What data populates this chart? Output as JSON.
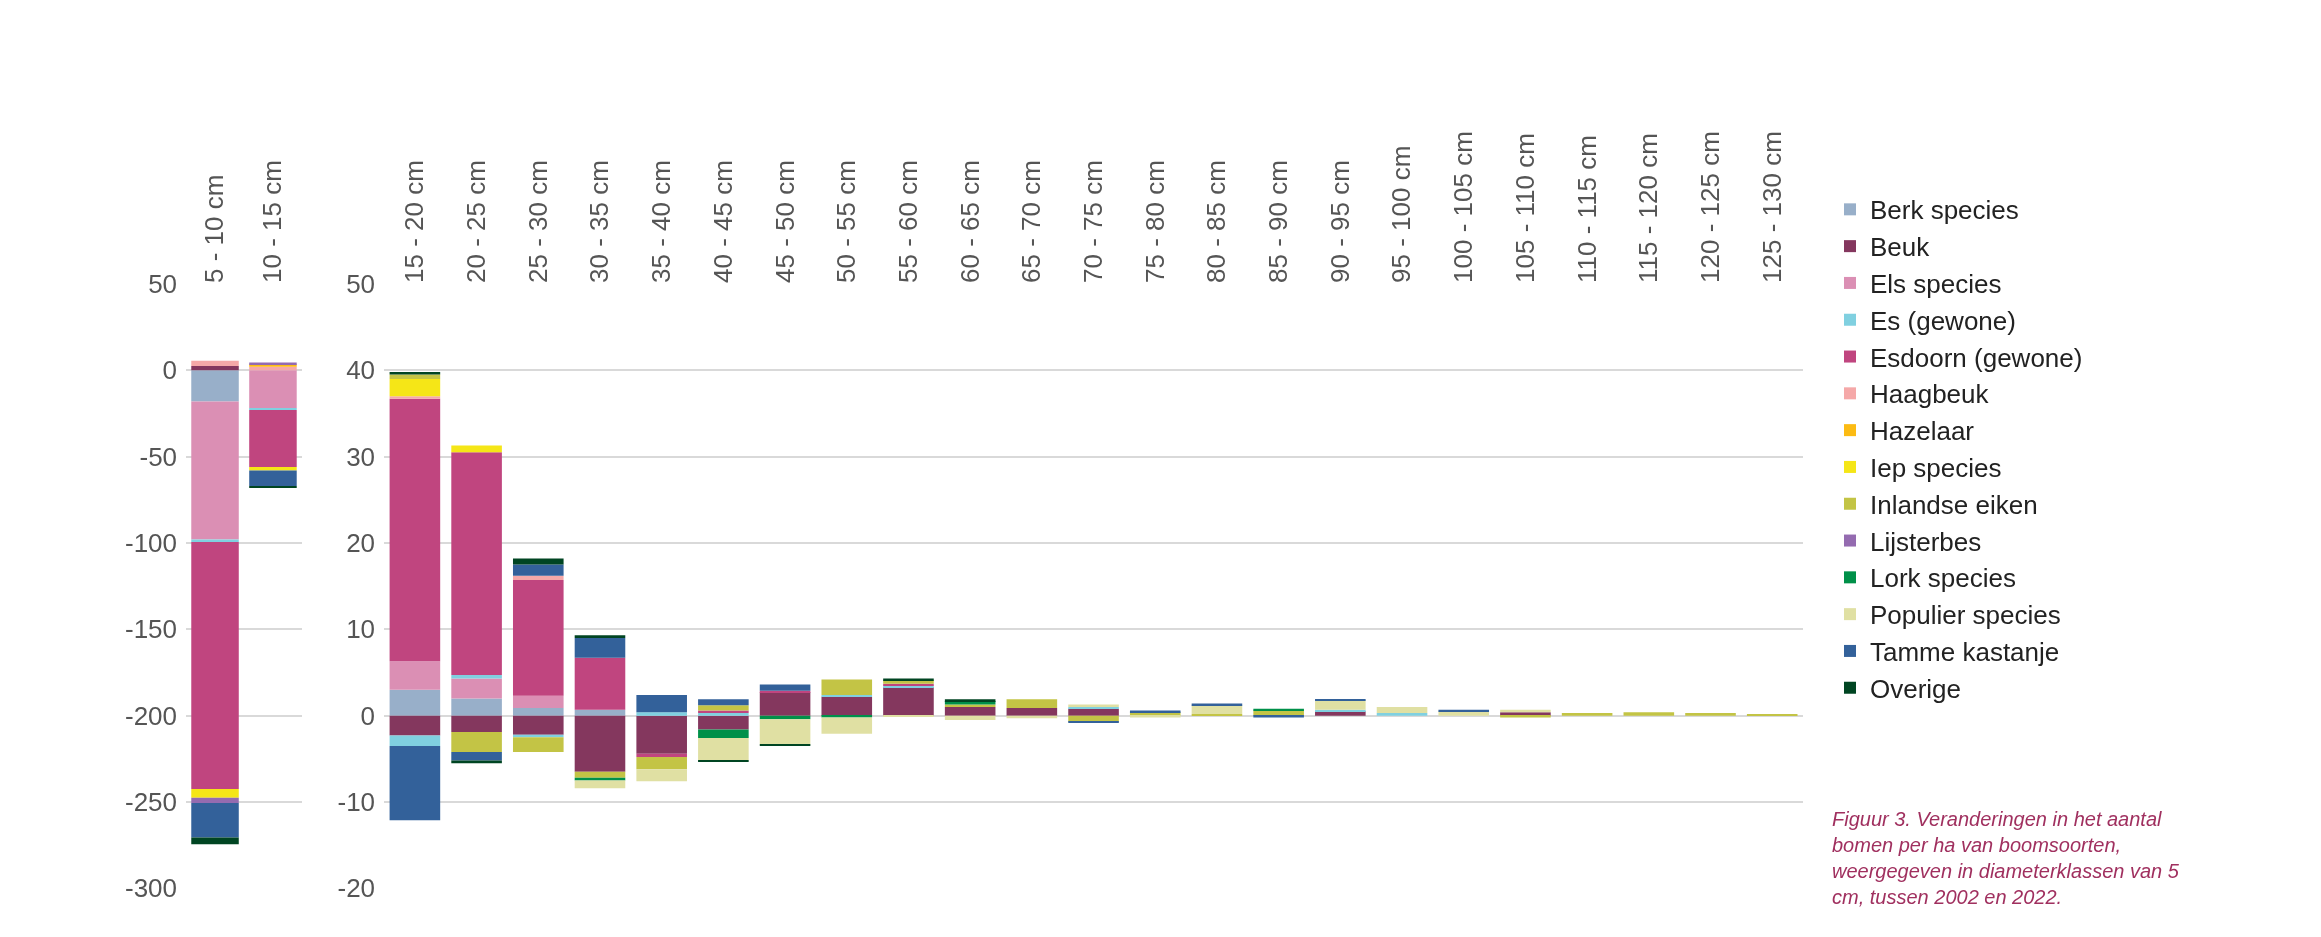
{
  "chart_data": [
    {
      "type": "bar",
      "stacked": true,
      "grid": "y",
      "legend": "right",
      "categories": [
        "5 - 10 cm",
        "10 - 15 cm"
      ],
      "ylim": [
        -300,
        50
      ],
      "yticks": [
        -300,
        -250,
        -200,
        -150,
        -100,
        -50,
        0,
        50
      ],
      "series": [
        {
          "name": "Berk species",
          "color": "#98afc9",
          "values": [
            -18,
            null
          ]
        },
        {
          "name": "Beuk",
          "color": "#84375e",
          "values": [
            2.5,
            null
          ]
        },
        {
          "name": "Els species",
          "color": "#db8fb4",
          "values": [
            -80,
            -22
          ]
        },
        {
          "name": "Es (gewone)",
          "color": "#80d0e0",
          "values": [
            -1.5,
            -1
          ]
        },
        {
          "name": "Esdoorn (gewone)",
          "color": "#c0457f",
          "values": [
            -143,
            -33
          ]
        },
        {
          "name": "Haagbeuk",
          "color": "#f5a8a8",
          "values": [
            3,
            2
          ]
        },
        {
          "name": "Hazelaar",
          "color": "#fcbb13",
          "values": [
            null,
            1.5
          ]
        },
        {
          "name": "Iep species",
          "color": "#f5e617",
          "values": [
            -5,
            -2
          ]
        },
        {
          "name": "Inlandse eiken",
          "color": "#c3c445",
          "values": [
            null,
            null
          ]
        },
        {
          "name": "Lijsterbes",
          "color": "#946bb0",
          "values": [
            -3,
            1
          ]
        },
        {
          "name": "Lork species",
          "color": "#009049",
          "values": [
            null,
            null
          ]
        },
        {
          "name": "Populier species",
          "color": "#e0e0a3",
          "values": [
            null,
            null
          ]
        },
        {
          "name": "Tamme kastanje",
          "color": "#33619a",
          "values": [
            -20,
            -9
          ]
        },
        {
          "name": "Overige",
          "color": "#004522",
          "values": [
            -4,
            -1
          ]
        }
      ]
    },
    {
      "type": "bar",
      "stacked": true,
      "grid": "y",
      "categories": [
        "15 - 20 cm",
        "20 - 25 cm",
        "25 - 30 cm",
        "30 - 35 cm",
        "35 - 40 cm",
        "40 - 45 cm",
        "45 - 50 cm",
        "50 - 55 cm",
        "55 - 60 cm",
        "60 - 65 cm",
        "65 - 70 cm",
        "70 - 75 cm",
        "75 - 80 cm",
        "80 - 85 cm",
        "85 - 90 cm",
        "90 - 95 cm",
        "95 - 100 cm",
        "100 - 105 cm",
        "105 - 110 cm",
        "110 - 115 cm",
        "115 - 120 cm",
        "120 - 125 cm",
        "125 - 130 cm"
      ],
      "ylim": [
        -20,
        50
      ],
      "yticks": [
        -20,
        -10,
        0,
        10,
        20,
        30,
        40,
        50
      ],
      "series": [
        {
          "color": "#98afc9",
          "values": [
            3.0,
            2.0,
            0.9,
            0.7,
            null,
            null,
            null,
            null,
            null,
            null,
            null,
            null,
            null,
            null,
            null,
            null,
            null,
            null,
            null,
            null,
            null,
            null,
            null
          ]
        },
        {
          "color": "#84375e",
          "values": [
            -2.3,
            -1.9,
            -2.2,
            -6.5,
            -4.4,
            -1.6,
            2.7,
            2.2,
            3.3,
            1.0,
            0.9,
            0.8,
            null,
            null,
            null,
            0.5,
            null,
            null,
            0.4,
            null,
            null,
            null,
            null
          ]
        },
        {
          "color": "#db8fb4",
          "values": [
            3.3,
            2.3,
            1.4,
            null,
            null,
            null,
            null,
            null,
            null,
            null,
            null,
            null,
            null,
            null,
            null,
            null,
            null,
            null,
            null,
            null,
            null,
            null,
            null
          ]
        },
        {
          "color": "#80d0e0",
          "values": [
            -1.2,
            0.4,
            -0.3,
            null,
            0.4,
            0.3,
            null,
            0.2,
            0.2,
            null,
            null,
            0.2,
            null,
            null,
            null,
            0.2,
            0.3,
            null,
            null,
            null,
            null,
            null,
            null
          ]
        },
        {
          "color": "#c0457f",
          "values": [
            30.4,
            25.8,
            13.4,
            6.0,
            -0.4,
            0.3,
            0.2,
            null,
            0.2,
            null,
            null,
            null,
            null,
            null,
            null,
            null,
            null,
            null,
            null,
            null,
            null,
            null,
            null
          ]
        },
        {
          "color": "#f5a8a8",
          "values": [
            0.3,
            null,
            0.5,
            null,
            null,
            null,
            null,
            null,
            null,
            null,
            null,
            null,
            null,
            null,
            null,
            null,
            null,
            null,
            null,
            null,
            null,
            null,
            null
          ]
        },
        {
          "color": "#f5e617",
          "values": [
            2.0,
            0.8,
            null,
            null,
            null,
            null,
            null,
            null,
            null,
            null,
            null,
            null,
            null,
            null,
            null,
            null,
            null,
            null,
            null,
            null,
            null,
            null,
            null
          ]
        },
        {
          "color": "#c3c445",
          "values": [
            0.5,
            -2.3,
            -1.7,
            -0.7,
            -1.4,
            0.6,
            null,
            1.8,
            0.4,
            0.3,
            1.0,
            -0.7,
            0.4,
            0.2,
            0.6,
            null,
            null,
            null,
            -0.2,
            0.3,
            0.4,
            0.3,
            0.1
          ]
        },
        {
          "color": "#009049",
          "values": [
            null,
            null,
            null,
            -0.3,
            null,
            -1.0,
            -0.4,
            -0.2,
            null,
            0.4,
            null,
            null,
            null,
            null,
            0.2,
            null,
            null,
            null,
            null,
            null,
            null,
            null,
            null
          ]
        },
        {
          "color": "#e0e0a3",
          "values": [
            null,
            null,
            null,
            -0.9,
            -1.4,
            -2.6,
            -2.9,
            -1.9,
            -0.1,
            -0.5,
            -0.3,
            0.3,
            -0.2,
            1.0,
            null,
            1.1,
            0.7,
            0.5,
            0.3,
            null,
            null,
            null,
            null
          ]
        },
        {
          "color": "#33619a",
          "values": [
            -8.6,
            -1.0,
            1.3,
            2.3,
            2.0,
            0.7,
            0.7,
            null,
            null,
            null,
            null,
            -0.1,
            0.2,
            0.2,
            -0.2,
            0.1,
            null,
            0.2,
            null,
            null,
            null,
            null,
            null
          ]
        },
        {
          "color": "#004522",
          "values": [
            0.3,
            -0.3,
            0.7,
            0.3,
            null,
            -0.1,
            -0.2,
            null,
            0.2,
            0.2,
            null,
            null,
            null,
            null,
            null,
            null,
            null,
            null,
            null,
            null,
            null,
            null,
            null
          ]
        }
      ],
      "annotations": [
        "Figuur 3. Veranderingen in het aantal bomen per ha van boomsoorten, weergegeven in diameterklassen van 5 cm, tussen 2002 en 2022."
      ]
    }
  ]
}
